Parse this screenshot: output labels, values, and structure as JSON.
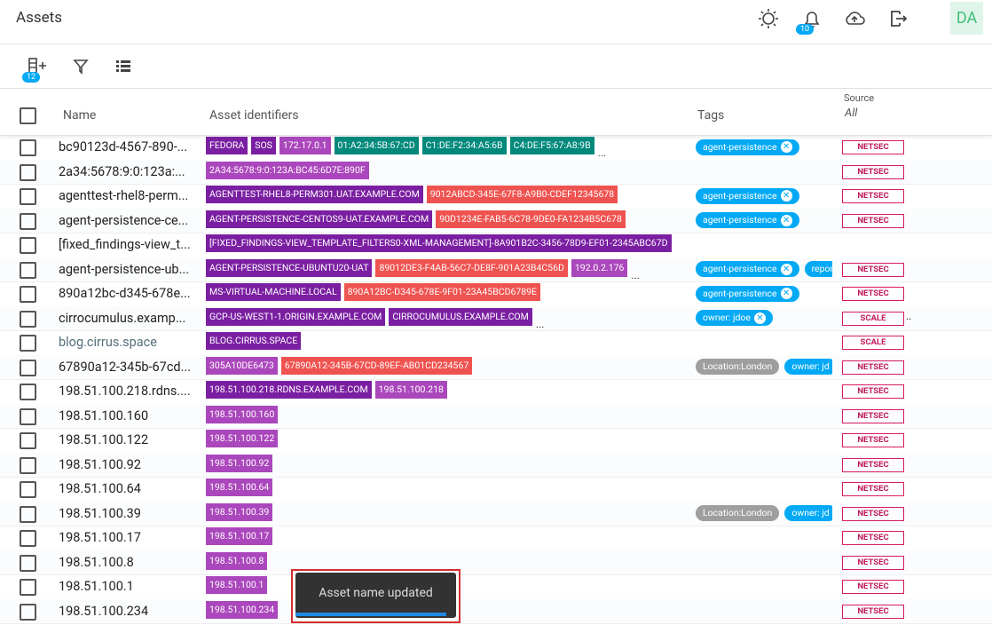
{
  "header": {
    "title": "Assets",
    "notification_count": "10",
    "avatar": "DA"
  },
  "toolbar": {
    "add_count": "12"
  },
  "table": {
    "columns": {
      "name": "Name",
      "identifiers": "Asset identifiers",
      "tags": "Tags",
      "source": "Source",
      "source_filter": "All"
    },
    "rows": [
      {
        "name": "bc90123d-4567-890-...",
        "identifiers": [
          {
            "text": "FEDORA",
            "color": "#7b1fa2"
          },
          {
            "text": "SOS",
            "color": "#7b1fa2"
          },
          {
            "text": "172.17.0.1",
            "color": "#ab47bc"
          },
          {
            "text": "01:A2:34:5B:67:CD",
            "color": "#00897b"
          },
          {
            "text": "C1:DE:F2:34:A5:6B",
            "color": "#00897b"
          },
          {
            "text": "C4:DE:F5:67:A8:9B",
            "color": "#00897b"
          }
        ],
        "more": "...",
        "tags": [
          {
            "text": "agent-persistence",
            "color": "#03a9f4",
            "removable": true
          }
        ],
        "source": "NETSEC"
      },
      {
        "name": "2a34:5678:9:0:123a:...",
        "identifiers": [
          {
            "text": "2A34:5678:9:0:123A:BC45:6D7E:890F",
            "color": "#ab47bc"
          }
        ],
        "tags": [],
        "source": "NETSEC"
      },
      {
        "name": "agenttest-rhel8-perm...",
        "identifiers": [
          {
            "text": "AGENTTEST-RHEL8-PERM301.UAT.EXAMPLE.COM",
            "color": "#7b1fa2"
          },
          {
            "text": "9012ABCD-345E-67F8-A9B0-CDEF12345678",
            "color": "#ef5350"
          }
        ],
        "tags": [
          {
            "text": "agent-persistence",
            "color": "#03a9f4",
            "removable": true
          }
        ],
        "source": "NETSEC"
      },
      {
        "name": "agent-persistence-ce...",
        "identifiers": [
          {
            "text": "AGENT-PERSISTENCE-CENTOS9-UAT.EXAMPLE.COM",
            "color": "#7b1fa2"
          },
          {
            "text": "90D1234E-FAB5-6C78-9DE0-FA1234B5C678",
            "color": "#ef5350"
          }
        ],
        "tags": [
          {
            "text": "agent-persistence",
            "color": "#03a9f4",
            "removable": true
          }
        ],
        "source": "NETSEC"
      },
      {
        "name": "[fixed_findings-view_t...",
        "identifiers": [
          {
            "text": "[FIXED_FINDINGS-VIEW_TEMPLATE_FILTERS0-XML-MANAGEMENT]-8A901B2C-3456-78D9-EF01-2345ABC67D",
            "color": "#7b1fa2"
          }
        ],
        "tags": []
      },
      {
        "name": "agent-persistence-ub...",
        "identifiers": [
          {
            "text": "AGENT-PERSISTENCE-UBUNTU20-UAT",
            "color": "#7b1fa2"
          },
          {
            "text": "89012DE3-F4AB-56C7-DE8F-901A23B4C56D",
            "color": "#ef5350"
          },
          {
            "text": "192.0.2.176",
            "color": "#ab47bc"
          }
        ],
        "more": "...",
        "tags": [
          {
            "text": "agent-persistence",
            "color": "#03a9f4",
            "removable": true
          },
          {
            "text": "repor",
            "color": "#03a9f4",
            "removable": false
          }
        ],
        "source": "NETSEC"
      },
      {
        "name": "890a12bc-d345-678e...",
        "identifiers": [
          {
            "text": "MS-VIRTUAL-MACHINE.LOCAL",
            "color": "#7b1fa2"
          },
          {
            "text": "890A12BC-D345-678E-9F01-23A45BCD6789E",
            "color": "#ef5350"
          }
        ],
        "tags": [
          {
            "text": "agent-persistence",
            "color": "#03a9f4",
            "removable": true
          }
        ],
        "source": "NETSEC"
      },
      {
        "name": "cirrocumulus.examp...",
        "identifiers": [
          {
            "text": "GCP-US-WEST1-1.ORIGIN.EXAMPLE.COM",
            "color": "#7b1fa2"
          },
          {
            "text": "CIRROCUMULUS.EXAMPLE.COM",
            "color": "#7b1fa2"
          }
        ],
        "more": "...",
        "tags": [
          {
            "text": "owner: jdoe",
            "color": "#03a9f4",
            "removable": true
          }
        ],
        "source": "SCALE",
        "source_more": ".."
      },
      {
        "name": "blog.cirrus.space",
        "muted": true,
        "identifiers": [
          {
            "text": "BLOG.CIRRUS.SPACE",
            "color": "#7b1fa2"
          }
        ],
        "tags": [],
        "source": "SCALE"
      },
      {
        "name": "67890a12-345b-67cd...",
        "identifiers": [
          {
            "text": "305A10DE6473",
            "color": "#ab47bc"
          },
          {
            "text": "67890A12-345B-67CD-89EF-AB01CD234567",
            "color": "#ef5350"
          }
        ],
        "tags": [
          {
            "text": "Location:London",
            "color": "#9e9e9e",
            "removable": false
          },
          {
            "text": "owner: jd",
            "color": "#03a9f4",
            "removable": false
          }
        ],
        "source": "NETSEC"
      },
      {
        "name": "198.51.100.218.rdns....",
        "identifiers": [
          {
            "text": "198.51.100.218.RDNS.EXAMPLE.COM",
            "color": "#7b1fa2"
          },
          {
            "text": "198.51.100.218",
            "color": "#ab47bc"
          }
        ],
        "tags": [],
        "source": "NETSEC"
      },
      {
        "name": "198.51.100.160",
        "identifiers": [
          {
            "text": "198.51.100.160",
            "color": "#ab47bc"
          }
        ],
        "tags": [],
        "source": "NETSEC"
      },
      {
        "name": "198.51.100.122",
        "identifiers": [
          {
            "text": "198.51.100.122",
            "color": "#ab47bc"
          }
        ],
        "tags": [],
        "source": "NETSEC"
      },
      {
        "name": "198.51.100.92",
        "identifiers": [
          {
            "text": "198.51.100.92",
            "color": "#ab47bc"
          }
        ],
        "tags": [],
        "source": "NETSEC"
      },
      {
        "name": "198.51.100.64",
        "identifiers": [
          {
            "text": "198.51.100.64",
            "color": "#ab47bc"
          }
        ],
        "tags": [],
        "source": "NETSEC"
      },
      {
        "name": "198.51.100.39",
        "identifiers": [
          {
            "text": "198.51.100.39",
            "color": "#ab47bc"
          }
        ],
        "tags": [
          {
            "text": "Location:London",
            "color": "#9e9e9e",
            "removable": false
          },
          {
            "text": "owner: jd",
            "color": "#03a9f4",
            "removable": false
          }
        ],
        "source": "NETSEC"
      },
      {
        "name": "198.51.100.17",
        "identifiers": [
          {
            "text": "198.51.100.17",
            "color": "#ab47bc"
          }
        ],
        "tags": [],
        "source": "NETSEC"
      },
      {
        "name": "198.51.100.8",
        "identifiers": [
          {
            "text": "198.51.100.8",
            "color": "#ab47bc"
          }
        ],
        "tags": [],
        "source": "NETSEC"
      },
      {
        "name": "198.51.100.1",
        "identifiers": [
          {
            "text": "198.51.100.1",
            "color": "#ab47bc"
          }
        ],
        "tags": [],
        "source": "NETSEC"
      },
      {
        "name": "198.51.100.234",
        "identifiers": [
          {
            "text": "198.51.100.234",
            "color": "#ab47bc"
          }
        ],
        "tags": [],
        "source": "NETSEC"
      }
    ]
  },
  "toast": {
    "message": "Asset name updated"
  }
}
